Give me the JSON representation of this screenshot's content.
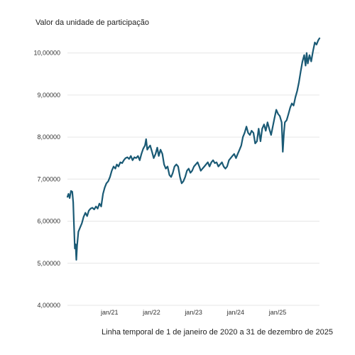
{
  "chart_data": {
    "type": "line",
    "ylabel": "Valor da unidade de participação",
    "caption": "Linha temporal de 1 de janeiro de 2020 a 31 de dezembro de 2025",
    "ylim": [
      4.0,
      10.5
    ],
    "xlim": [
      "2020-01-01",
      "2025-12-31"
    ],
    "y_ticks": [
      {
        "value": 4.0,
        "label": "4,00000"
      },
      {
        "value": 5.0,
        "label": "5,00000"
      },
      {
        "value": 6.0,
        "label": "6,00000"
      },
      {
        "value": 7.0,
        "label": "7,00000"
      },
      {
        "value": 8.0,
        "label": "8,00000"
      },
      {
        "value": 9.0,
        "label": "9,00000"
      },
      {
        "value": 10.0,
        "label": "10,00000"
      }
    ],
    "x_ticks": [
      {
        "value": "2021-01-01",
        "label": "jan/21"
      },
      {
        "value": "2022-01-01",
        "label": "jan/22"
      },
      {
        "value": "2023-01-01",
        "label": "jan/23"
      },
      {
        "value": "2024-01-01",
        "label": "jan/24"
      },
      {
        "value": "2025-01-01",
        "label": "jan/25"
      }
    ],
    "grid": true,
    "line_color": "#1a5a75",
    "series": [
      {
        "points": [
          [
            "2020-01-01",
            6.58
          ],
          [
            "2020-01-10",
            6.65
          ],
          [
            "2020-01-20",
            6.55
          ],
          [
            "2020-02-01",
            6.72
          ],
          [
            "2020-02-12",
            6.7
          ],
          [
            "2020-02-20",
            6.45
          ],
          [
            "2020-02-26",
            5.95
          ],
          [
            "2020-03-05",
            5.35
          ],
          [
            "2020-03-12",
            5.45
          ],
          [
            "2020-03-18",
            5.08
          ],
          [
            "2020-03-25",
            5.42
          ],
          [
            "2020-04-05",
            5.75
          ],
          [
            "2020-04-20",
            5.85
          ],
          [
            "2020-05-05",
            5.95
          ],
          [
            "2020-05-20",
            6.1
          ],
          [
            "2020-06-05",
            6.2
          ],
          [
            "2020-06-20",
            6.12
          ],
          [
            "2020-07-05",
            6.25
          ],
          [
            "2020-07-20",
            6.3
          ],
          [
            "2020-08-05",
            6.32
          ],
          [
            "2020-08-20",
            6.28
          ],
          [
            "2020-09-05",
            6.35
          ],
          [
            "2020-09-20",
            6.3
          ],
          [
            "2020-10-05",
            6.42
          ],
          [
            "2020-10-20",
            6.35
          ],
          [
            "2020-11-05",
            6.65
          ],
          [
            "2020-11-20",
            6.8
          ],
          [
            "2020-12-05",
            6.9
          ],
          [
            "2020-12-20",
            6.95
          ],
          [
            "2021-01-05",
            7.05
          ],
          [
            "2021-01-20",
            7.2
          ],
          [
            "2021-02-05",
            7.3
          ],
          [
            "2021-02-20",
            7.25
          ],
          [
            "2021-03-05",
            7.35
          ],
          [
            "2021-03-20",
            7.3
          ],
          [
            "2021-04-05",
            7.4
          ],
          [
            "2021-04-20",
            7.38
          ],
          [
            "2021-05-05",
            7.45
          ],
          [
            "2021-05-20",
            7.5
          ],
          [
            "2021-06-05",
            7.52
          ],
          [
            "2021-06-20",
            7.48
          ],
          [
            "2021-07-05",
            7.55
          ],
          [
            "2021-07-20",
            7.45
          ],
          [
            "2021-08-05",
            7.52
          ],
          [
            "2021-08-20",
            7.5
          ],
          [
            "2021-09-05",
            7.55
          ],
          [
            "2021-09-20",
            7.45
          ],
          [
            "2021-10-05",
            7.6
          ],
          [
            "2021-10-20",
            7.72
          ],
          [
            "2021-11-05",
            7.8
          ],
          [
            "2021-11-15",
            7.95
          ],
          [
            "2021-11-25",
            7.7
          ],
          [
            "2021-12-05",
            7.75
          ],
          [
            "2021-12-20",
            7.8
          ],
          [
            "2022-01-05",
            7.65
          ],
          [
            "2022-01-20",
            7.5
          ],
          [
            "2022-02-05",
            7.6
          ],
          [
            "2022-02-20",
            7.75
          ],
          [
            "2022-03-05",
            7.55
          ],
          [
            "2022-03-20",
            7.7
          ],
          [
            "2022-04-05",
            7.6
          ],
          [
            "2022-04-20",
            7.35
          ],
          [
            "2022-05-05",
            7.25
          ],
          [
            "2022-05-20",
            7.3
          ],
          [
            "2022-06-05",
            7.1
          ],
          [
            "2022-06-20",
            7.05
          ],
          [
            "2022-07-05",
            7.15
          ],
          [
            "2022-07-20",
            7.3
          ],
          [
            "2022-08-05",
            7.35
          ],
          [
            "2022-08-20",
            7.3
          ],
          [
            "2022-09-05",
            7.05
          ],
          [
            "2022-09-20",
            6.9
          ],
          [
            "2022-10-05",
            6.95
          ],
          [
            "2022-10-20",
            7.05
          ],
          [
            "2022-11-05",
            7.2
          ],
          [
            "2022-11-20",
            7.25
          ],
          [
            "2022-12-05",
            7.15
          ],
          [
            "2022-12-20",
            7.2
          ],
          [
            "2023-01-05",
            7.3
          ],
          [
            "2023-01-20",
            7.35
          ],
          [
            "2023-02-05",
            7.4
          ],
          [
            "2023-02-20",
            7.3
          ],
          [
            "2023-03-05",
            7.2
          ],
          [
            "2023-03-20",
            7.25
          ],
          [
            "2023-04-05",
            7.3
          ],
          [
            "2023-04-20",
            7.35
          ],
          [
            "2023-05-05",
            7.4
          ],
          [
            "2023-05-20",
            7.3
          ],
          [
            "2023-06-05",
            7.4
          ],
          [
            "2023-06-20",
            7.45
          ],
          [
            "2023-07-05",
            7.38
          ],
          [
            "2023-07-20",
            7.4
          ],
          [
            "2023-08-05",
            7.3
          ],
          [
            "2023-08-20",
            7.35
          ],
          [
            "2023-09-05",
            7.4
          ],
          [
            "2023-09-20",
            7.3
          ],
          [
            "2023-10-05",
            7.25
          ],
          [
            "2023-10-20",
            7.3
          ],
          [
            "2023-11-05",
            7.45
          ],
          [
            "2023-11-20",
            7.5
          ],
          [
            "2023-12-05",
            7.55
          ],
          [
            "2023-12-20",
            7.6
          ],
          [
            "2024-01-05",
            7.5
          ],
          [
            "2024-01-20",
            7.6
          ],
          [
            "2024-02-05",
            7.7
          ],
          [
            "2024-02-20",
            7.8
          ],
          [
            "2024-03-05",
            8.0
          ],
          [
            "2024-03-20",
            8.1
          ],
          [
            "2024-04-05",
            8.25
          ],
          [
            "2024-04-20",
            8.1
          ],
          [
            "2024-05-05",
            8.05
          ],
          [
            "2024-05-20",
            8.15
          ],
          [
            "2024-06-05",
            8.1
          ],
          [
            "2024-06-20",
            7.85
          ],
          [
            "2024-07-05",
            7.9
          ],
          [
            "2024-07-20",
            8.2
          ],
          [
            "2024-08-05",
            7.9
          ],
          [
            "2024-08-20",
            8.2
          ],
          [
            "2024-09-05",
            8.3
          ],
          [
            "2024-09-20",
            8.15
          ],
          [
            "2024-10-05",
            8.35
          ],
          [
            "2024-10-20",
            8.2
          ],
          [
            "2024-11-05",
            8.05
          ],
          [
            "2024-11-20",
            8.25
          ],
          [
            "2024-12-05",
            8.45
          ],
          [
            "2024-12-20",
            8.65
          ],
          [
            "2025-01-05",
            8.55
          ],
          [
            "2025-01-20",
            8.5
          ],
          [
            "2025-02-05",
            8.35
          ],
          [
            "2025-02-15",
            7.65
          ],
          [
            "2025-02-25",
            8.1
          ],
          [
            "2025-03-05",
            8.35
          ],
          [
            "2025-03-20",
            8.4
          ],
          [
            "2025-04-05",
            8.55
          ],
          [
            "2025-04-20",
            8.7
          ],
          [
            "2025-05-05",
            8.8
          ],
          [
            "2025-05-20",
            8.75
          ],
          [
            "2025-06-05",
            8.95
          ],
          [
            "2025-06-20",
            9.1
          ],
          [
            "2025-07-05",
            9.3
          ],
          [
            "2025-07-20",
            9.55
          ],
          [
            "2025-08-05",
            9.8
          ],
          [
            "2025-08-20",
            9.95
          ],
          [
            "2025-09-01",
            9.7
          ],
          [
            "2025-09-10",
            10.0
          ],
          [
            "2025-09-20",
            9.75
          ],
          [
            "2025-10-05",
            9.95
          ],
          [
            "2025-10-20",
            9.8
          ],
          [
            "2025-11-05",
            10.05
          ],
          [
            "2025-11-20",
            10.25
          ],
          [
            "2025-12-05",
            10.2
          ],
          [
            "2025-12-20",
            10.3
          ],
          [
            "2025-12-31",
            10.35
          ]
        ]
      }
    ]
  }
}
